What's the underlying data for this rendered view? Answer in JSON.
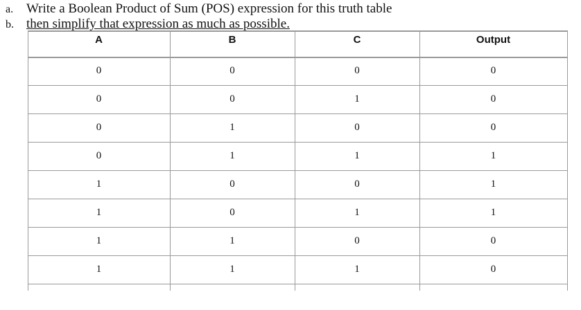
{
  "instructions": [
    {
      "marker": "a.",
      "text": "Write a Boolean Product of Sum (POS) expression for this truth table"
    },
    {
      "marker": "b.",
      "text": "then simplify that expression as much as possible."
    }
  ],
  "table": {
    "header": [
      "A",
      "B",
      "C",
      "Output"
    ],
    "rows": [
      [
        0,
        0,
        0,
        0
      ],
      [
        0,
        0,
        1,
        0
      ],
      [
        0,
        1,
        0,
        0
      ],
      [
        0,
        1,
        1,
        1
      ],
      [
        1,
        0,
        0,
        1
      ],
      [
        1,
        0,
        1,
        1
      ],
      [
        1,
        1,
        0,
        0
      ],
      [
        1,
        1,
        1,
        0
      ]
    ]
  }
}
